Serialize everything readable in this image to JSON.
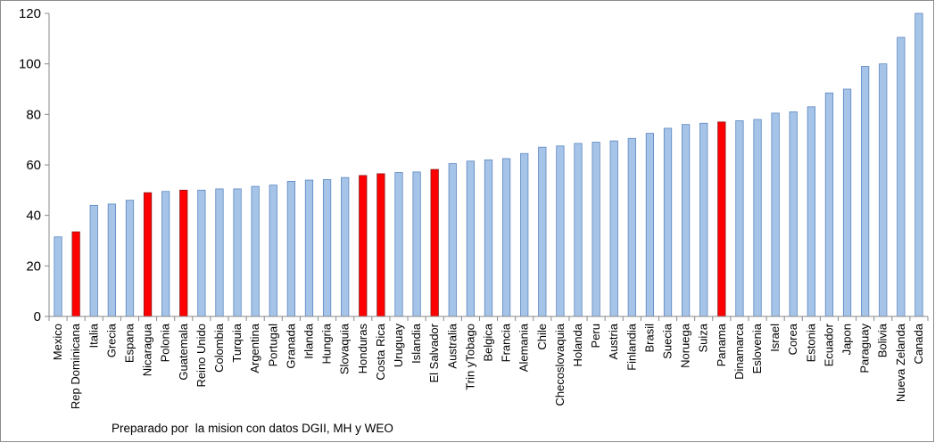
{
  "chart_data": {
    "type": "bar",
    "title": "",
    "xlabel": "",
    "ylabel": "",
    "ylim": [
      0,
      120
    ],
    "yticks": [
      0,
      20,
      40,
      60,
      80,
      100,
      120
    ],
    "grid": false,
    "legend": "none",
    "categories": [
      "Mexico",
      "Rep Dominicana",
      "Italia",
      "Grecia",
      "Espana",
      "Nicaragua",
      "Polonia",
      "Guatemala",
      "Reino Unido",
      "Colombia",
      "Turquia",
      "Argentina",
      "Portugal",
      "Granada",
      "Irlanda",
      "Hungria",
      "Slovaquia",
      "Honduras",
      "Costa Rica",
      "Uruguay",
      "Islandia",
      "El Salvador",
      "Australia",
      "Trin yTobago",
      "Belgica",
      "Francia",
      "Alemania",
      "Chile",
      "Checoslovaquia",
      "Holanda",
      "Peru",
      "Austria",
      "Finlandia",
      "Brasil",
      "Suecia",
      "Noruega",
      "Suiza",
      "Panama",
      "Dinamarca",
      "Eslovenia",
      "Israel",
      "Corea",
      "Estonia",
      "Ecuador",
      "Japon",
      "Paraguay",
      "Bolivia",
      "Nueva Zelanda",
      "Canada"
    ],
    "values": [
      31.5,
      33.5,
      44,
      44.5,
      46,
      49,
      49.5,
      50,
      50,
      50.5,
      50.5,
      51.5,
      52,
      53.5,
      54,
      54.2,
      55,
      55.8,
      56.5,
      57,
      57.2,
      58.2,
      60.5,
      61.5,
      62,
      62.5,
      64.5,
      67,
      67.5,
      68.5,
      69,
      69.5,
      70.5,
      72.5,
      74.5,
      76,
      76.5,
      77,
      77.5,
      78,
      80.5,
      81,
      83,
      88.5,
      90,
      99,
      100,
      110.5,
      120
    ],
    "highlighted": [
      "Rep Dominicana",
      "Nicaragua",
      "Guatemala",
      "Honduras",
      "Costa Rica",
      "El Salvador",
      "Panama"
    ],
    "colors": {
      "bar_fill": "#a6c4e8",
      "bar_stroke": "#5b86c0",
      "highlight_fill": "#ff0000",
      "highlight_stroke": "#8b1a1a",
      "axis": "#888888"
    }
  },
  "note": "Preparado por  la mision con datos DGII, MH y WEO"
}
